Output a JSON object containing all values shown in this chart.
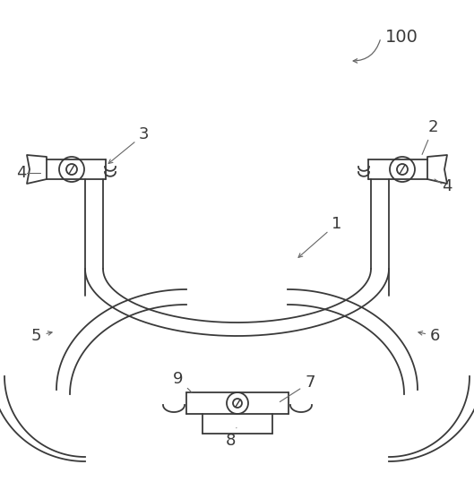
{
  "background_color": "#ffffff",
  "line_color": "#3a3a3a",
  "label_color": "#3a3a3a",
  "figsize": [
    5.29,
    5.57
  ],
  "dpi": 100,
  "lw": 1.3
}
